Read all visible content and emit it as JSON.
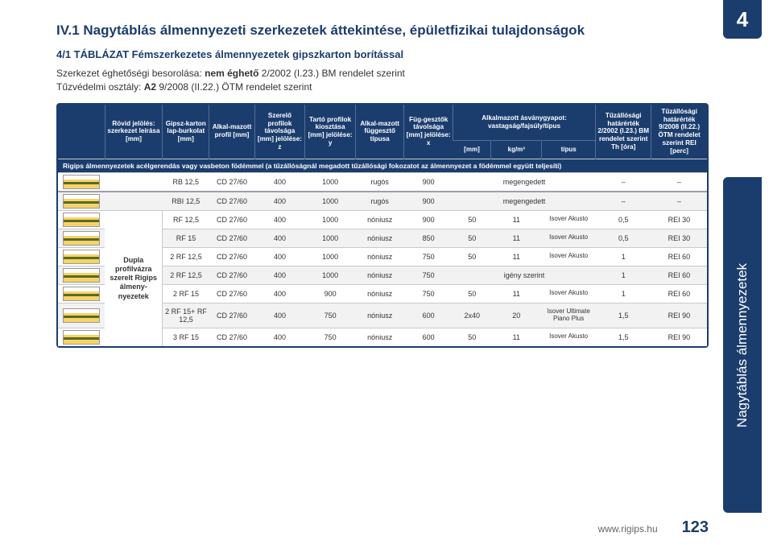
{
  "page_badge": "4",
  "heading": "IV.1 Nagytáblás álmennyezeti szerkezetek áttekintése, épületfizikai tulajdonságok",
  "subtitle": "4/1 TÁBLÁZAT Fémszerkezetes álmennyezetek gipszkarton borítással",
  "meta_line1_a": "Szerkezet éghetőségi besorolása: ",
  "meta_line1_b": "nem éghető",
  "meta_line1_c": " 2/2002 (I.23.) BM rendelet szerint",
  "meta_line2_a": "Tűzvédelmi osztály: ",
  "meta_line2_b": "A2",
  "meta_line2_c": " 9/2008 (II.22.) ÖTM rendelet szerint",
  "side_tab": "Nagytáblás álmennyezetek",
  "footer_url": "www.rigips.hu",
  "footer_page": "123",
  "columns": {
    "c0": "",
    "c1": "Rövid jelölés: szerkezet leírása [mm]",
    "c2": "Gipsz-karton lap-burkolat [mm]",
    "c3": "Alkal-mazott profil [mm]",
    "c4": "Szerelő profilok távolsága [mm] jelölése: z",
    "c5": "Tartó profilok kiosztása [mm] jelölése: y",
    "c6": "Alkal-mazott függesztő típusa",
    "c7": "Füg-gesztők távolsága [mm] jelölése: x",
    "c8": "Alkalmazott ásványgyapot: vastagság/fajsúly/típus",
    "c9": "Tűzállósági határérték 2/2002 (I.23.) BM rendelet szerint Th [óra]",
    "c10": "Tűzállósági határérték 9/2008 (II.22.) ÖTM rendelet szerint REI [perc]"
  },
  "subcols": {
    "s1": "[mm]",
    "s2": "kg/m³",
    "s3": "típus"
  },
  "caption_row": "Rigips álmennyezetek acélgerendás vagy vasbeton födémmel (a tűzállóságnál megadott tűzállósági fokozatot az álmennyezet a födémmel együtt teljesíti)",
  "rowgroup_label": "Dupla profilvázra szerelt Rigips álmeny-nyezetek",
  "rows": [
    {
      "c2": "RB 12,5",
      "c3": "CD 27/60",
      "c4": "400",
      "c5": "1000",
      "c6": "rugós",
      "c7": "900",
      "w1": "",
      "w2": "megengedett",
      "w3": "",
      "c9": "–",
      "c10": "–",
      "alt": false
    },
    {
      "c2": "RBI 12,5",
      "c3": "CD 27/60",
      "c4": "400",
      "c5": "1000",
      "c6": "rugós",
      "c7": "900",
      "w1": "",
      "w2": "megengedett",
      "w3": "",
      "c9": "–",
      "c10": "–",
      "alt": true,
      "sectionFirst": true
    },
    {
      "c2": "RF 12,5",
      "c3": "CD 27/60",
      "c4": "400",
      "c5": "1000",
      "c6": "nóniusz",
      "c7": "900",
      "w1": "50",
      "w2": "11",
      "w3": "Isover Akusto",
      "c9": "0,5",
      "c10": "REI 30",
      "alt": false
    },
    {
      "c2": "RF 15",
      "c3": "CD 27/60",
      "c4": "400",
      "c5": "1000",
      "c6": "nóniusz",
      "c7": "850",
      "w1": "50",
      "w2": "11",
      "w3": "Isover Akusto",
      "c9": "0,5",
      "c10": "REI 30",
      "alt": true
    },
    {
      "c2": "2 RF 12,5",
      "c3": "CD 27/60",
      "c4": "400",
      "c5": "1000",
      "c6": "nóniusz",
      "c7": "750",
      "w1": "50",
      "w2": "11",
      "w3": "Isover Akusto",
      "c9": "1",
      "c10": "REI 60",
      "alt": false
    },
    {
      "c2": "2 RF 12,5",
      "c3": "CD 27/60",
      "c4": "400",
      "c5": "1000",
      "c6": "nóniusz",
      "c7": "750",
      "w1": "",
      "w2": "igény szerint",
      "w3": "",
      "c9": "1",
      "c10": "REI 60",
      "alt": true
    },
    {
      "c2": "2 RF 15",
      "c3": "CD 27/60",
      "c4": "400",
      "c5": "900",
      "c6": "nóniusz",
      "c7": "750",
      "w1": "50",
      "w2": "11",
      "w3": "Isover Akusto",
      "c9": "1",
      "c10": "REI 60",
      "alt": false
    },
    {
      "c2": "2 RF 15+ RF 12,5",
      "c3": "CD 27/60",
      "c4": "400",
      "c5": "750",
      "c6": "nóniusz",
      "c7": "600",
      "w1": "2x40",
      "w2": "20",
      "w3": "Isover Ultimate Piano Plus",
      "c9": "1,5",
      "c10": "REI 90",
      "alt": true
    },
    {
      "c2": "3 RF 15",
      "c3": "CD 27/60",
      "c4": "400",
      "c5": "750",
      "c6": "nóniusz",
      "c7": "600",
      "w1": "50",
      "w2": "11",
      "w3": "Isover Akusto",
      "c9": "1,5",
      "c10": "REI 90",
      "alt": false
    }
  ],
  "colors": {
    "brand": "#1b3d6e",
    "row_alt": "#f2f2f2"
  }
}
